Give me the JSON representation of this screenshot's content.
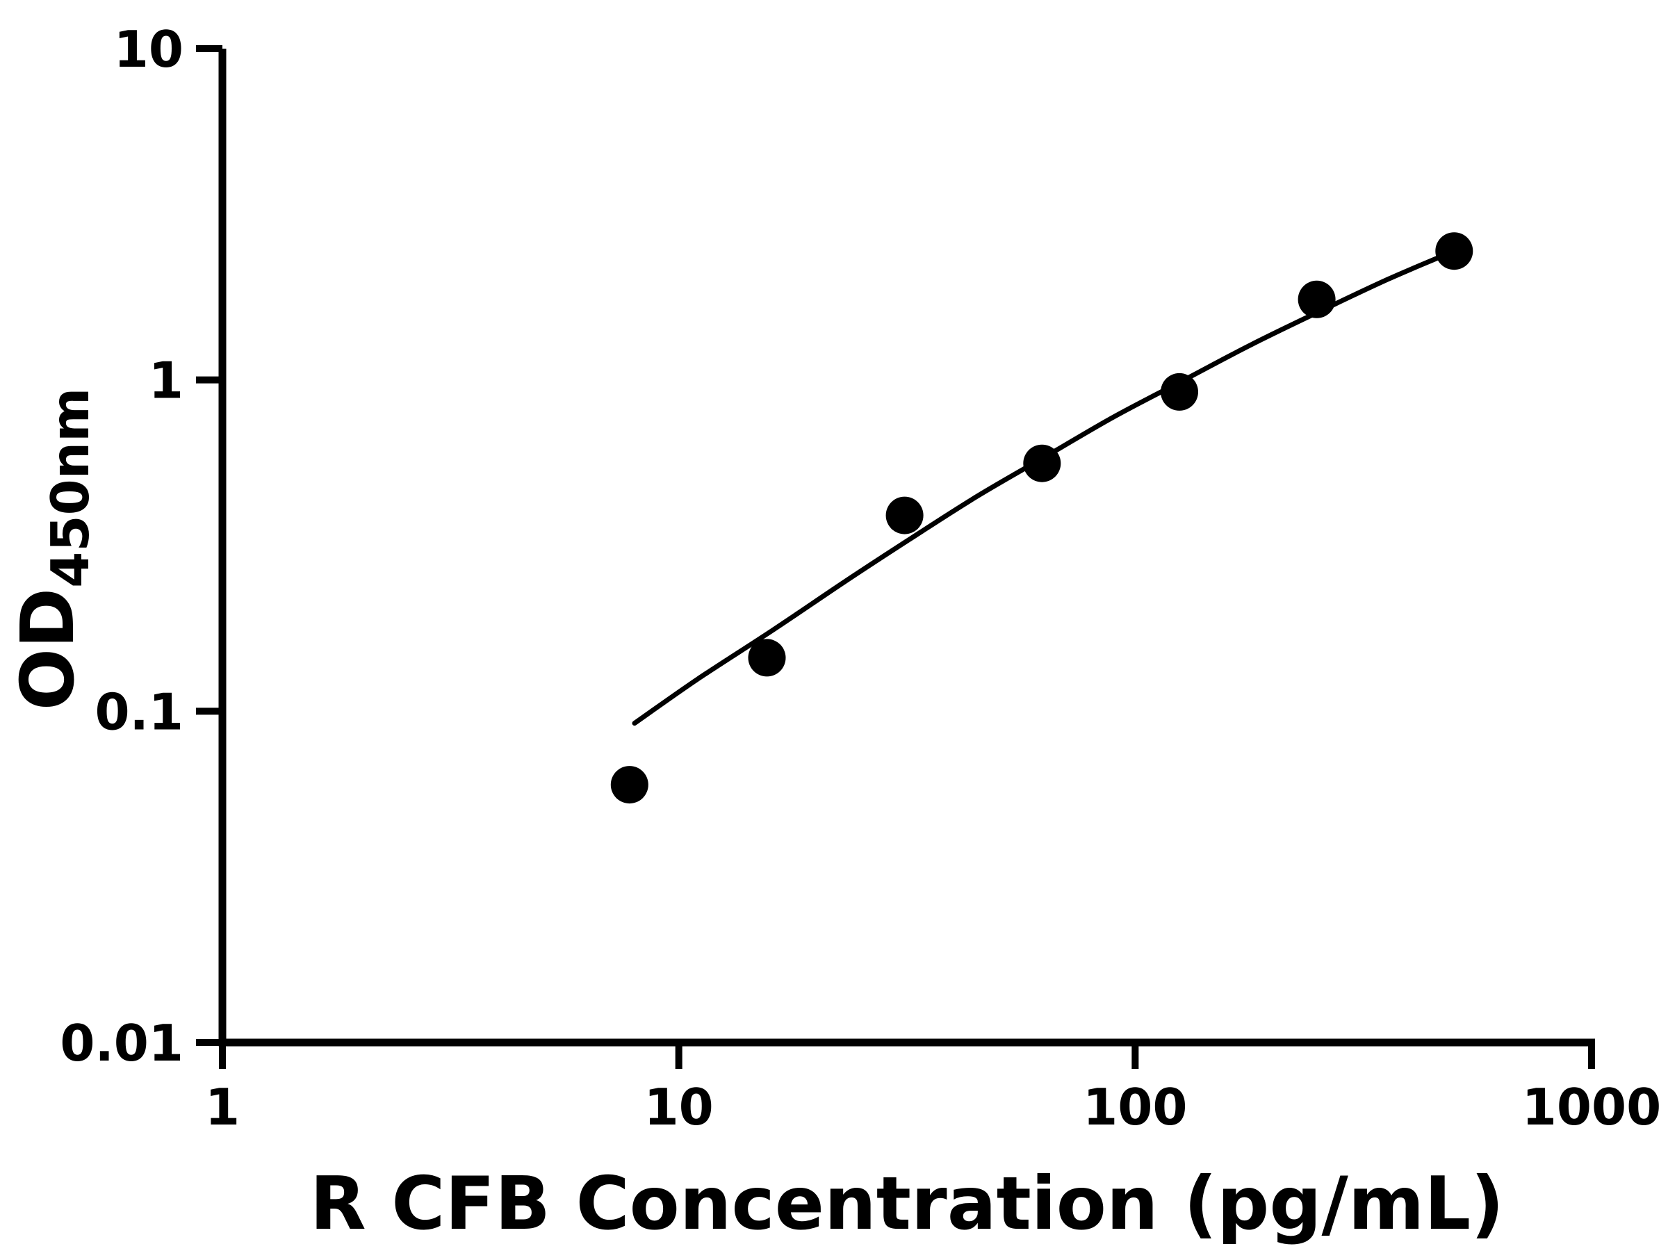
{
  "chart_data": {
    "type": "scatter",
    "title": "",
    "xlabel": "R CFB Concentration (pg/mL)",
    "ylabel": "OD450nm",
    "ylabel_main": "OD",
    "ylabel_sub": "450nm",
    "x_scale": "log",
    "y_scale": "log",
    "xlim": [
      1,
      1000
    ],
    "ylim": [
      0.01,
      10
    ],
    "x_ticks": [
      1,
      10,
      100,
      1000
    ],
    "x_tick_labels": [
      "1",
      "10",
      "100",
      "1000"
    ],
    "y_ticks": [
      0.01,
      0.1,
      1,
      10
    ],
    "y_tick_labels": [
      "0.01",
      "0.1",
      "1",
      "10"
    ],
    "grid": false,
    "legend": "none",
    "background_color": "#ffffff",
    "axis_color": "#000000",
    "marker_color": "#000000",
    "line_color": "#000000",
    "points": [
      {
        "x": 7.8,
        "y": 0.06
      },
      {
        "x": 15.6,
        "y": 0.145
      },
      {
        "x": 31.25,
        "y": 0.39
      },
      {
        "x": 62.5,
        "y": 0.56
      },
      {
        "x": 125,
        "y": 0.92
      },
      {
        "x": 250,
        "y": 1.75
      },
      {
        "x": 500,
        "y": 2.45
      }
    ],
    "curve_points": [
      {
        "x": 8,
        "y": 0.092
      },
      {
        "x": 11,
        "y": 0.125
      },
      {
        "x": 16,
        "y": 0.175
      },
      {
        "x": 23,
        "y": 0.245
      },
      {
        "x": 32,
        "y": 0.33
      },
      {
        "x": 45,
        "y": 0.445
      },
      {
        "x": 64,
        "y": 0.59
      },
      {
        "x": 90,
        "y": 0.775
      },
      {
        "x": 128,
        "y": 1.0
      },
      {
        "x": 180,
        "y": 1.28
      },
      {
        "x": 256,
        "y": 1.62
      },
      {
        "x": 360,
        "y": 2.02
      },
      {
        "x": 500,
        "y": 2.45
      }
    ]
  }
}
